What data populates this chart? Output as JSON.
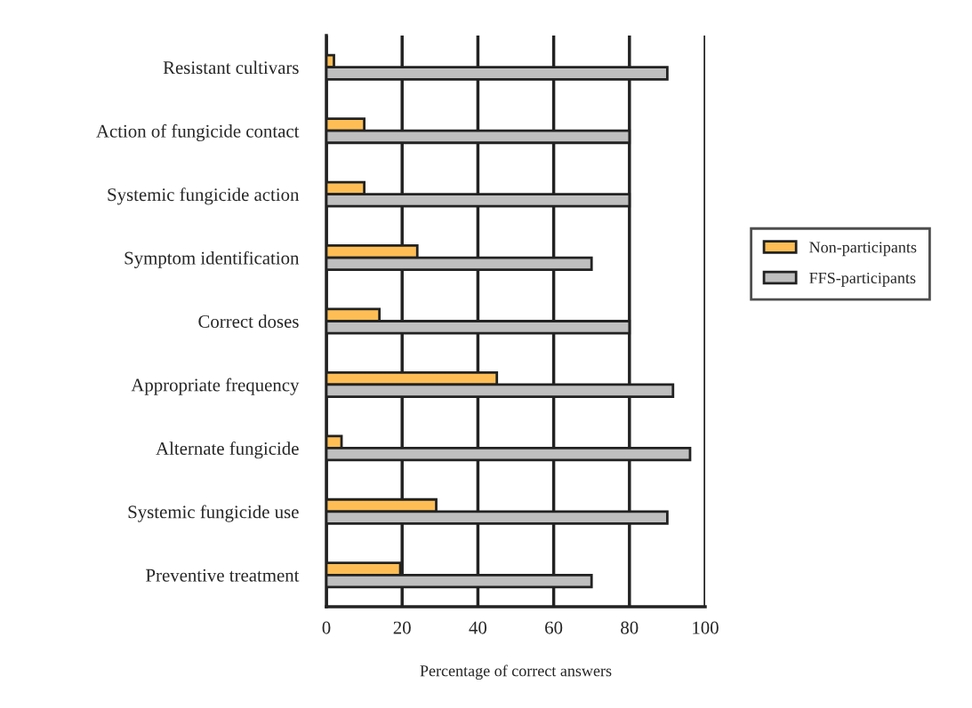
{
  "chart_data": {
    "type": "bar",
    "orientation": "horizontal",
    "xlabel": "Percentage of correct answers",
    "categories": [
      "Resistant cultivars",
      "Action of fungicide contact",
      "Systemic fungicide action",
      "Symptom identification",
      "Correct doses",
      "Appropriate frequency",
      "Alternate fungicide",
      "Systemic fungicide use",
      "Preventive treatment"
    ],
    "series": [
      {
        "name": "Non-participants",
        "color": "#ffbe55",
        "values": [
          2,
          10,
          10,
          24,
          14,
          45,
          4,
          29,
          19.5
        ]
      },
      {
        "name": "FFS-participants",
        "color": "#bfbfbf",
        "values": [
          90,
          80,
          80,
          70,
          80,
          91.5,
          96,
          90,
          70
        ]
      }
    ],
    "xlim": [
      0,
      100
    ],
    "xticks": [
      0,
      20,
      40,
      60,
      80,
      100
    ],
    "grid": "x",
    "legend": "right"
  }
}
